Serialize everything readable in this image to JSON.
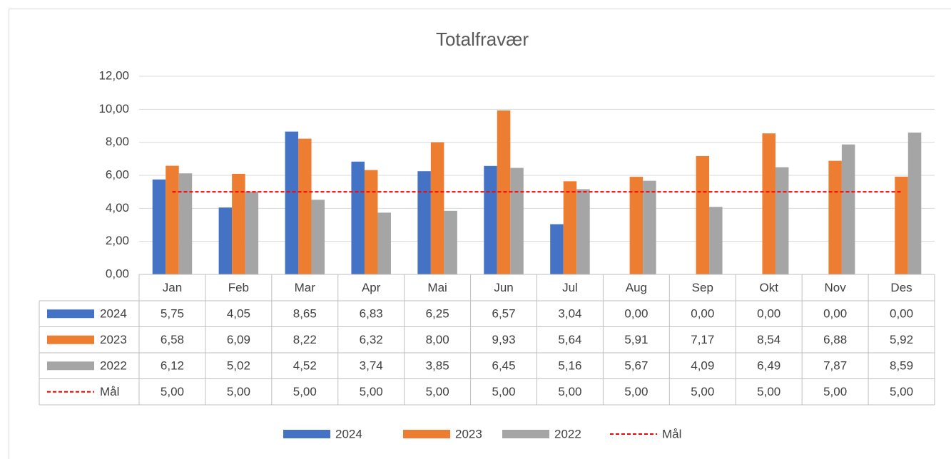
{
  "chart_data": {
    "type": "bar",
    "title": "Totalfravær",
    "categories": [
      "Jan",
      "Feb",
      "Mar",
      "Apr",
      "Mai",
      "Jun",
      "Jul",
      "Aug",
      "Sep",
      "Okt",
      "Nov",
      "Des"
    ],
    "series": [
      {
        "name": "2024",
        "type": "bar",
        "color": "#4472c4",
        "values": [
          5.75,
          4.05,
          8.65,
          6.83,
          6.25,
          6.57,
          3.04,
          0,
          0,
          0,
          0,
          0
        ],
        "value_labels": [
          "5,75",
          "4,05",
          "8,65",
          "6,83",
          "6,25",
          "6,57",
          "3,04",
          "0,00",
          "0,00",
          "0,00",
          "0,00",
          "0,00"
        ]
      },
      {
        "name": "2023",
        "type": "bar",
        "color": "#ed7d31",
        "values": [
          6.58,
          6.09,
          8.22,
          6.32,
          8.0,
          9.93,
          5.64,
          5.91,
          7.17,
          8.54,
          6.88,
          5.92
        ],
        "value_labels": [
          "6,58",
          "6,09",
          "8,22",
          "6,32",
          "8,00",
          "9,93",
          "5,64",
          "5,91",
          "7,17",
          "8,54",
          "6,88",
          "5,92"
        ]
      },
      {
        "name": "2022",
        "type": "bar",
        "color": "#a5a5a5",
        "values": [
          6.12,
          5.02,
          4.52,
          3.74,
          3.85,
          6.45,
          5.16,
          5.67,
          4.09,
          6.49,
          7.87,
          8.59
        ],
        "value_labels": [
          "6,12",
          "5,02",
          "4,52",
          "3,74",
          "3,85",
          "6,45",
          "5,16",
          "5,67",
          "4,09",
          "6,49",
          "7,87",
          "8,59"
        ]
      },
      {
        "name": "Mål",
        "type": "line",
        "line_style": "dashed",
        "color": "#ff0000",
        "values": [
          5,
          5,
          5,
          5,
          5,
          5,
          5,
          5,
          5,
          5,
          5,
          5
        ],
        "value_labels": [
          "5,00",
          "5,00",
          "5,00",
          "5,00",
          "5,00",
          "5,00",
          "5,00",
          "5,00",
          "5,00",
          "5,00",
          "5,00",
          "5,00"
        ]
      }
    ],
    "ylim": [
      0,
      12
    ],
    "yticks": [
      {
        "value": 0,
        "label": "0,00"
      },
      {
        "value": 2,
        "label": "2,00"
      },
      {
        "value": 4,
        "label": "4,00"
      },
      {
        "value": 6,
        "label": "6,00"
      },
      {
        "value": 8,
        "label": "8,00"
      },
      {
        "value": 10,
        "label": "10,00"
      },
      {
        "value": 12,
        "label": "12,00"
      }
    ],
    "grid": true,
    "legend": "bottom",
    "data_table": true
  }
}
